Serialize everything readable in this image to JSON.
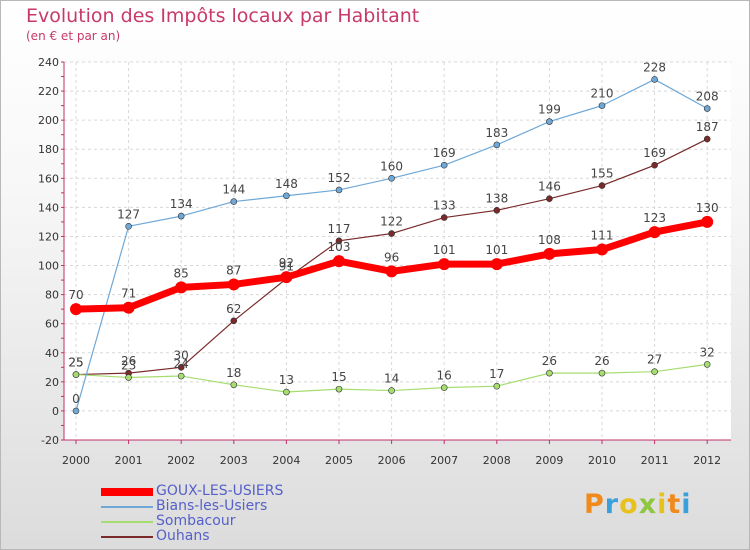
{
  "title": "Evolution des Impôts locaux par Habitant",
  "subtitle": "(en € et par an)",
  "logo": {
    "letters": [
      "P",
      "r",
      "o",
      "x",
      "i",
      "t",
      "i"
    ],
    "colors": [
      "#f08a1c",
      "#3aa0dc",
      "#e8c21c",
      "#8ec63f",
      "#e8c21c",
      "#f08a1c",
      "#3aa0dc"
    ]
  },
  "chart_data": {
    "type": "line",
    "title": "Evolution des Impôts locaux par Habitant",
    "subtitle": "(en € et par an)",
    "xlabel": "",
    "ylabel": "",
    "x": [
      2000,
      2001,
      2002,
      2003,
      2004,
      2005,
      2006,
      2007,
      2008,
      2009,
      2010,
      2011,
      2012
    ],
    "ylim": [
      -20,
      240
    ],
    "yticks": [
      -20,
      0,
      20,
      40,
      60,
      80,
      100,
      120,
      140,
      160,
      180,
      200,
      220,
      240
    ],
    "grid": true,
    "legend_position": "bottom-left",
    "series": [
      {
        "name": "GOUX-LES-USIERS",
        "color": "#ff0000",
        "values": [
          70,
          71,
          85,
          87,
          92,
          103,
          96,
          101,
          101,
          108,
          111,
          123,
          130
        ]
      },
      {
        "name": "Bians-les-Usiers",
        "color": "#6fa8d6",
        "values": [
          0,
          127,
          134,
          144,
          148,
          152,
          160,
          169,
          183,
          199,
          210,
          228,
          208
        ]
      },
      {
        "name": "Sombacour",
        "color": "#a6dd70",
        "values": [
          25,
          23,
          24,
          18,
          13,
          15,
          14,
          16,
          17,
          26,
          26,
          27,
          32
        ]
      },
      {
        "name": "Ouhans",
        "color": "#7a2a2a",
        "values": [
          25,
          26,
          30,
          62,
          91,
          117,
          122,
          133,
          138,
          146,
          155,
          169,
          187
        ]
      }
    ]
  }
}
